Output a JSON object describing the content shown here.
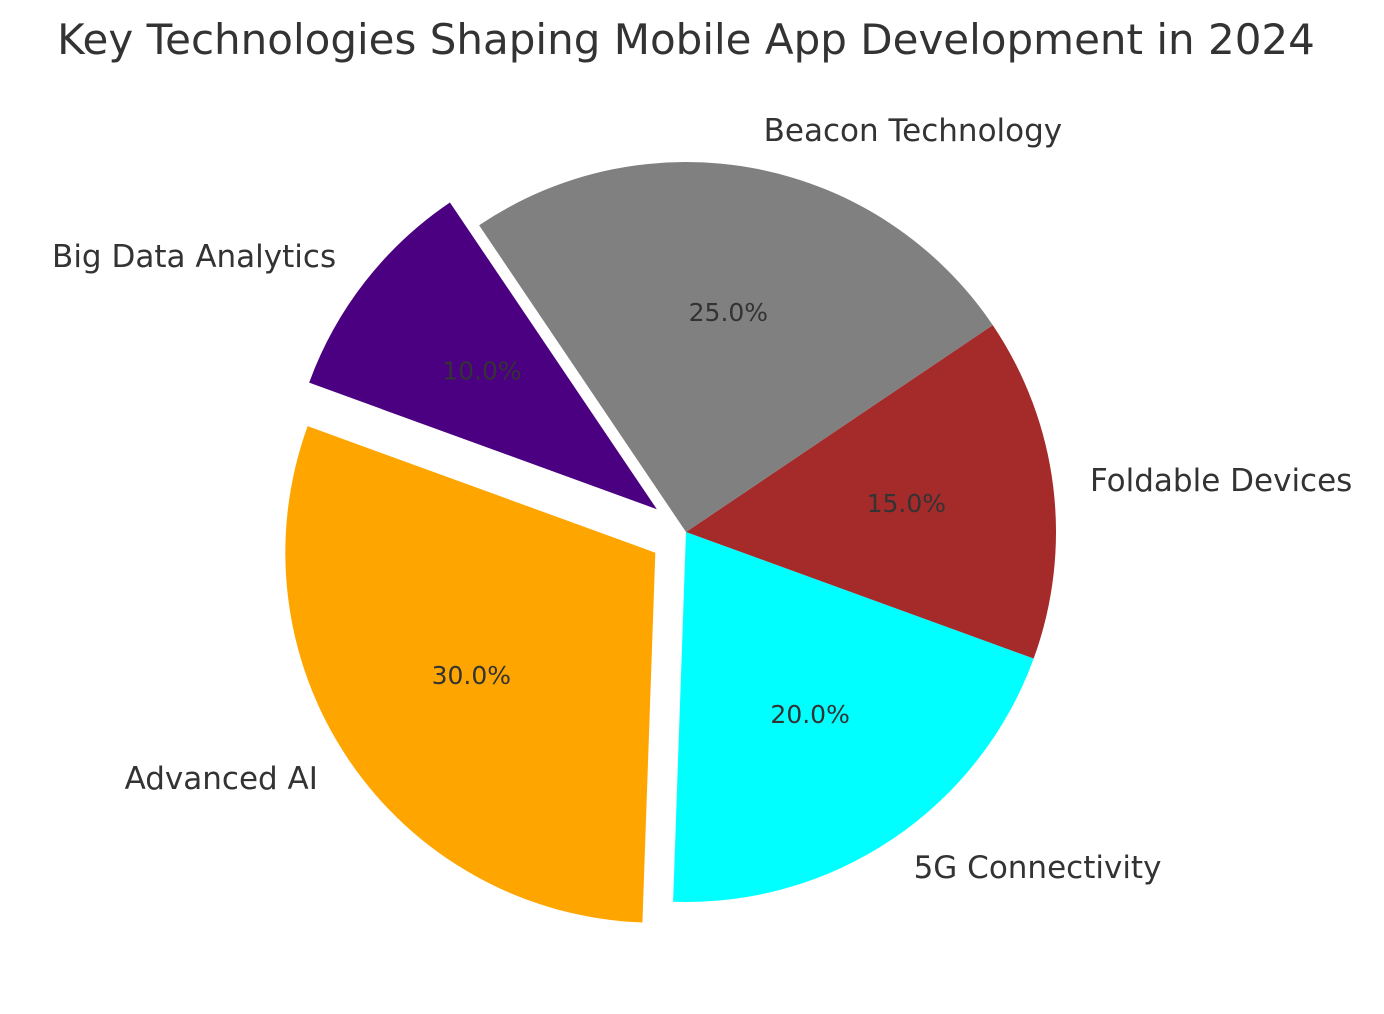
{
  "chart_data": {
    "type": "pie",
    "title": "Key Technologies Shaping Mobile App Development in 2024",
    "start_angle_deg": 160,
    "direction": "counterclockwise",
    "slices": [
      {
        "label": "Advanced AI",
        "value": 30,
        "pct_label": "30.0%",
        "color": "#FFA500",
        "exploded": true
      },
      {
        "label": "5G Connectivity",
        "value": 20,
        "pct_label": "20.0%",
        "color": "#00FFFF",
        "exploded": false
      },
      {
        "label": "Foldable Devices",
        "value": 15,
        "pct_label": "15.0%",
        "color": "#A52A2A",
        "exploded": false
      },
      {
        "label": "Beacon Technology",
        "value": 25,
        "pct_label": "25.0%",
        "color": "#808080",
        "exploded": false
      },
      {
        "label": "Big Data Analytics",
        "value": 10,
        "pct_label": "10.0%",
        "color": "#4B0082",
        "exploded": true
      }
    ]
  }
}
